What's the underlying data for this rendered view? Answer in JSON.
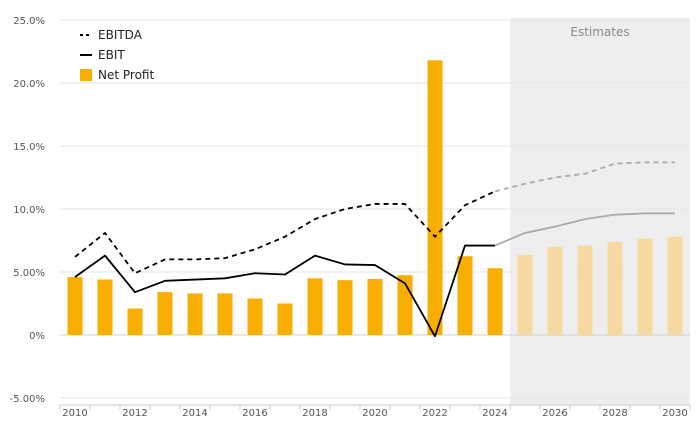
{
  "chart_data": {
    "type": "bar",
    "x": [
      2010,
      2011,
      2012,
      2013,
      2014,
      2015,
      2016,
      2017,
      2018,
      2019,
      2020,
      2021,
      2022,
      2023,
      2024,
      2025,
      2026,
      2027,
      2028,
      2029,
      2030
    ],
    "x_tick_labels": [
      "2010",
      "2012",
      "2014",
      "2016",
      "2018",
      "2020",
      "2022",
      "2024",
      "2026",
      "2028",
      "2030"
    ],
    "y_tick_labels": [
      "-5.00%",
      "0%",
      "5.00%",
      "10.0%",
      "15.0%",
      "20.0%",
      "25.0%"
    ],
    "ylim": [
      -5,
      25
    ],
    "y_unit": "%",
    "estimates_label": "Estimates",
    "estimates_from": 2025,
    "grid": "horizontal",
    "legend_position": "top-left",
    "series": [
      {
        "name": "EBITDA",
        "type": "line",
        "style": "dashed",
        "color": "#000000",
        "estimate_color": "#aaaaaa",
        "values": [
          6.2,
          8.1,
          4.9,
          6.0,
          6.0,
          6.1,
          6.8,
          7.8,
          9.2,
          10.0,
          10.4,
          10.4,
          7.8,
          10.3,
          11.4,
          12.0,
          12.5,
          12.8,
          13.6,
          13.7,
          13.7
        ]
      },
      {
        "name": "EBIT",
        "type": "line",
        "style": "solid",
        "color": "#000000",
        "estimate_color": "#aaaaaa",
        "values": [
          4.6,
          6.3,
          3.4,
          4.3,
          4.4,
          4.5,
          4.9,
          4.8,
          6.3,
          5.6,
          5.55,
          4.1,
          -0.1,
          7.1,
          7.1,
          8.1,
          8.6,
          9.2,
          9.55,
          9.65,
          9.65
        ]
      },
      {
        "name": "Net Profit",
        "type": "bar",
        "color": "#f7ae00",
        "estimate_color": "#f5d9a0",
        "values": [
          4.6,
          4.4,
          2.1,
          3.4,
          3.3,
          3.3,
          2.9,
          2.5,
          4.5,
          4.35,
          4.45,
          4.75,
          21.8,
          6.25,
          5.3,
          6.35,
          7.0,
          7.1,
          7.4,
          7.65,
          7.8
        ]
      }
    ]
  }
}
